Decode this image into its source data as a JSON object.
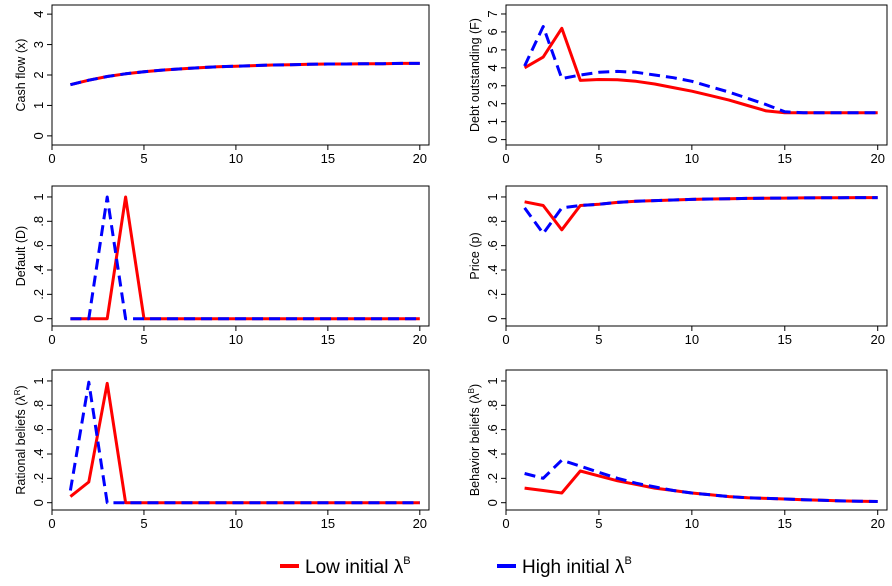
{
  "colors": {
    "low": "#ff0000",
    "high": "#0000ff",
    "frame": "#000000"
  },
  "legend": [
    {
      "series_key": "low",
      "text": "Low initial λ",
      "sup": "B",
      "color": "#ff0000",
      "dashed": false
    },
    {
      "series_key": "high",
      "text": "High initial λ",
      "sup": "B",
      "color": "#0000ff",
      "dashed": true
    }
  ],
  "chart_data": [
    {
      "type": "line",
      "ylabel": "Cash flow (x)",
      "ylabel_sup": "",
      "xlim": [
        0,
        20.5
      ],
      "ylim": [
        -0.3,
        4.3
      ],
      "xticks": [
        0,
        5,
        10,
        15,
        20
      ],
      "xtick_labels": [
        "0",
        "5",
        "10",
        "15",
        "20"
      ],
      "yticks": [
        0,
        1,
        2,
        3,
        4
      ],
      "ytick_labels": [
        "0",
        "1",
        "2",
        "3",
        "4"
      ],
      "grid": false,
      "x": [
        1,
        2,
        3,
        4,
        5,
        6,
        7,
        8,
        9,
        10,
        11,
        12,
        13,
        14,
        15,
        16,
        17,
        18,
        19,
        20
      ],
      "series": [
        {
          "key": "low",
          "values": [
            1.68,
            1.83,
            1.95,
            2.04,
            2.11,
            2.16,
            2.2,
            2.24,
            2.27,
            2.29,
            2.31,
            2.33,
            2.34,
            2.35,
            2.36,
            2.36,
            2.37,
            2.37,
            2.38,
            2.38
          ]
        },
        {
          "key": "high",
          "values": [
            1.68,
            1.83,
            1.95,
            2.04,
            2.11,
            2.16,
            2.2,
            2.24,
            2.27,
            2.29,
            2.31,
            2.33,
            2.34,
            2.35,
            2.36,
            2.36,
            2.37,
            2.37,
            2.38,
            2.38
          ]
        }
      ]
    },
    {
      "type": "line",
      "ylabel": "Debt outstanding (F)",
      "ylabel_sup": "",
      "xlim": [
        0,
        20.5
      ],
      "ylim": [
        -0.3,
        7.5
      ],
      "xticks": [
        0,
        5,
        10,
        15,
        20
      ],
      "xtick_labels": [
        "0",
        "5",
        "10",
        "15",
        "20"
      ],
      "yticks": [
        0,
        1,
        2,
        3,
        4,
        5,
        6,
        7
      ],
      "ytick_labels": [
        "0",
        "1",
        "2",
        "3",
        "4",
        "5",
        "6",
        "7"
      ],
      "grid": false,
      "x": [
        1,
        2,
        3,
        4,
        5,
        6,
        7,
        8,
        9,
        10,
        11,
        12,
        13,
        14,
        15,
        16,
        17,
        18,
        19,
        20
      ],
      "series": [
        {
          "key": "low",
          "values": [
            4.0,
            4.6,
            6.2,
            3.3,
            3.35,
            3.33,
            3.25,
            3.1,
            2.9,
            2.7,
            2.45,
            2.2,
            1.9,
            1.6,
            1.5,
            1.5,
            1.5,
            1.5,
            1.5,
            1.5
          ]
        },
        {
          "key": "high",
          "values": [
            4.1,
            6.3,
            3.4,
            3.6,
            3.75,
            3.8,
            3.75,
            3.6,
            3.45,
            3.25,
            2.95,
            2.65,
            2.3,
            1.95,
            1.55,
            1.5,
            1.5,
            1.5,
            1.5,
            1.5
          ]
        }
      ]
    },
    {
      "type": "line",
      "ylabel": "Default (D)",
      "ylabel_sup": "",
      "xlim": [
        0,
        20.5
      ],
      "ylim": [
        -0.06,
        1.09
      ],
      "xticks": [
        0,
        5,
        10,
        15,
        20
      ],
      "xtick_labels": [
        "0",
        "5",
        "10",
        "15",
        "20"
      ],
      "yticks": [
        0,
        0.2,
        0.4,
        0.6,
        0.8,
        1
      ],
      "ytick_labels": [
        "0",
        ".2",
        ".4",
        ".6",
        ".8",
        "1"
      ],
      "grid": false,
      "x": [
        1,
        2,
        3,
        4,
        5,
        6,
        7,
        8,
        9,
        10,
        11,
        12,
        13,
        14,
        15,
        16,
        17,
        18,
        19,
        20
      ],
      "series": [
        {
          "key": "low",
          "values": [
            0,
            0,
            0,
            1,
            0,
            0,
            0,
            0,
            0,
            0,
            0,
            0,
            0,
            0,
            0,
            0,
            0,
            0,
            0,
            0
          ]
        },
        {
          "key": "high",
          "values": [
            0,
            0,
            1,
            0,
            0,
            0,
            0,
            0,
            0,
            0,
            0,
            0,
            0,
            0,
            0,
            0,
            0,
            0,
            0,
            0
          ]
        }
      ]
    },
    {
      "type": "line",
      "ylabel": "Price (p)",
      "ylabel_sup": "",
      "xlim": [
        0,
        20.5
      ],
      "ylim": [
        -0.06,
        1.09
      ],
      "xticks": [
        0,
        5,
        10,
        15,
        20
      ],
      "xtick_labels": [
        "0",
        "5",
        "10",
        "15",
        "20"
      ],
      "yticks": [
        0,
        0.2,
        0.4,
        0.6,
        0.8,
        1
      ],
      "ytick_labels": [
        "0",
        ".2",
        ".4",
        ".6",
        ".8",
        "1"
      ],
      "grid": false,
      "x": [
        1,
        2,
        3,
        4,
        5,
        6,
        7,
        8,
        9,
        10,
        11,
        12,
        13,
        14,
        15,
        16,
        17,
        18,
        19,
        20
      ],
      "series": [
        {
          "key": "low",
          "values": [
            0.96,
            0.93,
            0.73,
            0.93,
            0.94,
            0.955,
            0.965,
            0.97,
            0.975,
            0.98,
            0.983,
            0.985,
            0.988,
            0.99,
            0.991,
            0.992,
            0.993,
            0.994,
            0.995,
            0.995
          ]
        },
        {
          "key": "high",
          "values": [
            0.91,
            0.7,
            0.91,
            0.93,
            0.94,
            0.955,
            0.965,
            0.97,
            0.975,
            0.98,
            0.983,
            0.985,
            0.988,
            0.99,
            0.991,
            0.992,
            0.993,
            0.994,
            0.995,
            0.995
          ]
        }
      ]
    },
    {
      "type": "line",
      "ylabel": "Rational beliefs (λ",
      "ylabel_sup": "R",
      "ylabel_close": ")",
      "xlim": [
        0,
        20.5
      ],
      "ylim": [
        -0.06,
        1.09
      ],
      "xticks": [
        0,
        5,
        10,
        15,
        20
      ],
      "xtick_labels": [
        "0",
        "5",
        "10",
        "15",
        "20"
      ],
      "yticks": [
        0,
        0.2,
        0.4,
        0.6,
        0.8,
        1
      ],
      "ytick_labels": [
        "0",
        ".2",
        ".4",
        ".6",
        ".8",
        "1"
      ],
      "grid": false,
      "x": [
        1,
        2,
        3,
        4,
        5,
        6,
        7,
        8,
        9,
        10,
        11,
        12,
        13,
        14,
        15,
        16,
        17,
        18,
        19,
        20
      ],
      "series": [
        {
          "key": "low",
          "values": [
            0.05,
            0.17,
            0.98,
            0,
            0,
            0,
            0,
            0,
            0,
            0,
            0,
            0,
            0,
            0,
            0,
            0,
            0,
            0,
            0,
            0
          ]
        },
        {
          "key": "high",
          "values": [
            0.1,
            0.99,
            0,
            0,
            0,
            0,
            0,
            0,
            0,
            0,
            0,
            0,
            0,
            0,
            0,
            0,
            0,
            0,
            0,
            0
          ]
        }
      ]
    },
    {
      "type": "line",
      "ylabel": "Behavior beliefs (λ",
      "ylabel_sup": "B",
      "ylabel_close": ")",
      "xlim": [
        0,
        20.5
      ],
      "ylim": [
        -0.06,
        1.09
      ],
      "xticks": [
        0,
        5,
        10,
        15,
        20
      ],
      "xtick_labels": [
        "0",
        "5",
        "10",
        "15",
        "20"
      ],
      "yticks": [
        0,
        0.2,
        0.4,
        0.6,
        0.8,
        1
      ],
      "ytick_labels": [
        "0",
        ".2",
        ".4",
        ".6",
        ".8",
        "1"
      ],
      "grid": false,
      "x": [
        1,
        2,
        3,
        4,
        5,
        6,
        7,
        8,
        9,
        10,
        11,
        12,
        13,
        14,
        15,
        16,
        17,
        18,
        19,
        20
      ],
      "series": [
        {
          "key": "low",
          "values": [
            0.12,
            0.1,
            0.08,
            0.26,
            0.22,
            0.18,
            0.15,
            0.12,
            0.1,
            0.08,
            0.065,
            0.05,
            0.04,
            0.035,
            0.03,
            0.025,
            0.02,
            0.015,
            0.012,
            0.01
          ]
        },
        {
          "key": "high",
          "values": [
            0.24,
            0.2,
            0.35,
            0.3,
            0.25,
            0.2,
            0.16,
            0.13,
            0.1,
            0.08,
            0.065,
            0.05,
            0.04,
            0.035,
            0.03,
            0.025,
            0.02,
            0.015,
            0.012,
            0.01
          ]
        }
      ]
    }
  ]
}
